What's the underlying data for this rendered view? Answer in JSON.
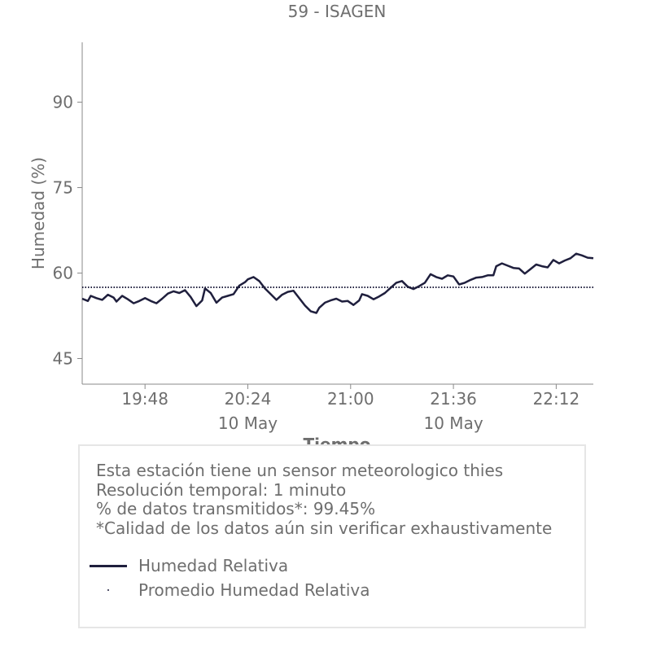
{
  "chart_data": {
    "type": "line",
    "title": "59 - ISAGEN",
    "xlabel": "Tiempo",
    "ylabel": "Humedad (%)",
    "y_ticks": [
      45,
      60,
      75,
      90
    ],
    "ylim": [
      40.5,
      100.5
    ],
    "x_ticks": [
      {
        "time": "19:48",
        "date": ""
      },
      {
        "time": "20:24",
        "date": "10 May"
      },
      {
        "time": "21:00",
        "date": ""
      },
      {
        "time": "21:36",
        "date": "10 May"
      },
      {
        "time": "22:12",
        "date": ""
      }
    ],
    "x_range": [
      "19:26",
      "22:25"
    ],
    "grid": false,
    "series": [
      {
        "name": "Humedad Relativa",
        "color": "#1f1f3d",
        "style": "solid",
        "x": [
          "19:26",
          "19:28",
          "19:29",
          "19:31",
          "19:33",
          "19:35",
          "19:37",
          "19:38",
          "19:40",
          "19:42",
          "19:44",
          "19:46",
          "19:48",
          "19:50",
          "19:52",
          "19:54",
          "19:56",
          "19:58",
          "20:00",
          "20:02",
          "20:04",
          "20:06",
          "20:08",
          "20:09",
          "20:11",
          "20:13",
          "20:15",
          "20:17",
          "20:19",
          "20:21",
          "20:23",
          "20:24",
          "20:26",
          "20:28",
          "20:30",
          "20:32",
          "20:34",
          "20:36",
          "20:38",
          "20:40",
          "20:42",
          "20:44",
          "20:46",
          "20:48",
          "20:49",
          "20:51",
          "20:53",
          "20:55",
          "20:57",
          "20:59",
          "21:01",
          "21:03",
          "21:04",
          "21:06",
          "21:08",
          "21:10",
          "21:12",
          "21:14",
          "21:16",
          "21:18",
          "21:20",
          "21:22",
          "21:24",
          "21:26",
          "21:28",
          "21:30",
          "21:32",
          "21:34",
          "21:36",
          "21:38",
          "21:40",
          "21:42",
          "21:44",
          "21:46",
          "21:48",
          "21:50",
          "21:51",
          "21:53",
          "21:55",
          "21:57",
          "21:59",
          "22:01",
          "22:03",
          "22:05",
          "22:07",
          "22:09",
          "22:11",
          "22:13",
          "22:15",
          "22:17",
          "22:19",
          "22:21",
          "22:23",
          "22:25"
        ],
        "values": [
          55.5,
          55.1,
          56.0,
          55.6,
          55.3,
          56.2,
          55.7,
          55.0,
          56.0,
          55.4,
          54.7,
          55.1,
          55.6,
          55.1,
          54.7,
          55.5,
          56.4,
          56.8,
          56.5,
          57.0,
          55.8,
          54.2,
          55.2,
          57.3,
          56.5,
          54.8,
          55.7,
          56.0,
          56.3,
          57.8,
          58.4,
          58.9,
          59.3,
          58.6,
          57.3,
          56.3,
          55.3,
          56.2,
          56.7,
          56.9,
          55.6,
          54.3,
          53.3,
          53.0,
          53.9,
          54.8,
          55.2,
          55.5,
          55.0,
          55.1,
          54.4,
          55.2,
          56.3,
          56.0,
          55.4,
          55.9,
          56.5,
          57.4,
          58.3,
          58.6,
          57.6,
          57.2,
          57.7,
          58.3,
          59.8,
          59.3,
          59.0,
          59.6,
          59.4,
          58.0,
          58.3,
          58.8,
          59.2,
          59.3,
          59.6,
          59.6,
          61.2,
          61.7,
          61.3,
          60.9,
          60.8,
          59.9,
          60.7,
          61.5,
          61.2,
          61.0,
          62.3,
          61.7,
          62.2,
          62.6,
          63.4,
          63.1,
          62.7,
          62.6
        ]
      },
      {
        "name": "Promedio Humedad Relativa",
        "color": "#1f1f3d",
        "style": "dotted",
        "values": [
          57.5
        ]
      }
    ],
    "legend_position": "bottom"
  },
  "info": {
    "lines": [
      "Esta estación tiene un sensor meteorologico thies",
      "Resolución temporal: 1 minuto",
      "% de datos transmitidos*: 99.45%",
      "*Calidad de los datos aún sin verificar exhaustivamente"
    ]
  }
}
